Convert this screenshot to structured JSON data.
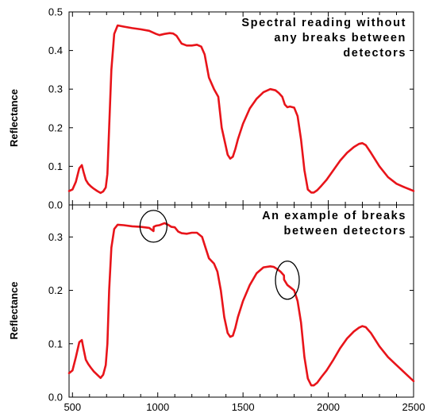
{
  "chart_data": [
    {
      "type": "line",
      "xlim": [
        480,
        2500
      ],
      "ylim": [
        0,
        0.5
      ],
      "ylabel": "Reflectance",
      "yticks": [
        "0.0",
        "0.1",
        "0.2",
        "0.3",
        "0.4",
        "0.5"
      ],
      "grid": false,
      "line_color": "#e8141a",
      "annotation": [
        "Spectral reading without",
        "any breaks between",
        "detectors"
      ],
      "series": [
        {
          "x": [
            480,
            500,
            520,
            540,
            555,
            565,
            578,
            592,
            608,
            625,
            645,
            665,
            680,
            695,
            705,
            715,
            728,
            745,
            765,
            800,
            850,
            900,
            950,
            990,
            1010,
            1040,
            1070,
            1090,
            1110,
            1140,
            1170,
            1200,
            1230,
            1255,
            1275,
            1300,
            1330,
            1355,
            1375,
            1395,
            1410,
            1425,
            1440,
            1455,
            1470,
            1500,
            1540,
            1580,
            1620,
            1660,
            1690,
            1710,
            1730,
            1745,
            1760,
            1775,
            1800,
            1820,
            1840,
            1860,
            1880,
            1900,
            1915,
            1935,
            1960,
            1990,
            2030,
            2070,
            2110,
            2150,
            2180,
            2200,
            2220,
            2250,
            2300,
            2350,
            2400,
            2450,
            2490,
            2500
          ],
          "values": [
            0.036,
            0.04,
            0.06,
            0.095,
            0.103,
            0.085,
            0.065,
            0.055,
            0.048,
            0.042,
            0.036,
            0.031,
            0.035,
            0.045,
            0.08,
            0.2,
            0.35,
            0.443,
            0.465,
            0.462,
            0.458,
            0.455,
            0.451,
            0.443,
            0.44,
            0.443,
            0.445,
            0.444,
            0.438,
            0.418,
            0.413,
            0.413,
            0.415,
            0.41,
            0.39,
            0.33,
            0.3,
            0.28,
            0.2,
            0.16,
            0.13,
            0.12,
            0.125,
            0.145,
            0.17,
            0.21,
            0.25,
            0.275,
            0.292,
            0.3,
            0.297,
            0.29,
            0.28,
            0.26,
            0.253,
            0.255,
            0.252,
            0.23,
            0.17,
            0.09,
            0.04,
            0.032,
            0.032,
            0.038,
            0.05,
            0.065,
            0.09,
            0.115,
            0.135,
            0.15,
            0.158,
            0.16,
            0.155,
            0.135,
            0.1,
            0.072,
            0.055,
            0.045,
            0.038,
            0.036
          ]
        }
      ]
    },
    {
      "type": "line",
      "xlim": [
        480,
        2500
      ],
      "ylim": [
        0,
        0.36
      ],
      "xlabel": "",
      "ylabel": "Reflectance",
      "xticks": [
        "500",
        "1000",
        "1500",
        "2000",
        "2500"
      ],
      "yticks": [
        "0.0",
        "0.1",
        "0.2",
        "0.3"
      ],
      "grid": false,
      "line_color": "#e8141a",
      "annotation": [
        "An example of breaks",
        "between detectors"
      ],
      "ellipse_centers": [
        {
          "x": 975,
          "y": 0.32
        },
        {
          "x": 1760,
          "y": 0.219
        }
      ],
      "series": [
        {
          "x": [
            480,
            500,
            520,
            540,
            555,
            565,
            578,
            592,
            608,
            625,
            645,
            665,
            680,
            695,
            705,
            715,
            728,
            745,
            765,
            800,
            850,
            900,
            950,
            975,
            976,
            990,
            1010,
            1040,
            1060,
            1080,
            1100,
            1120,
            1140,
            1170,
            1200,
            1230,
            1260,
            1280,
            1300,
            1330,
            1350,
            1370,
            1390,
            1410,
            1425,
            1440,
            1455,
            1470,
            1500,
            1540,
            1580,
            1620,
            1660,
            1680,
            1700,
            1720,
            1740,
            1741,
            1760,
            1780,
            1800,
            1820,
            1840,
            1860,
            1880,
            1900,
            1915,
            1935,
            1960,
            1990,
            2030,
            2070,
            2110,
            2150,
            2180,
            2200,
            2220,
            2250,
            2300,
            2350,
            2400,
            2450,
            2500
          ],
          "values": [
            0.045,
            0.05,
            0.075,
            0.103,
            0.107,
            0.09,
            0.07,
            0.062,
            0.055,
            0.048,
            0.042,
            0.036,
            0.042,
            0.06,
            0.1,
            0.2,
            0.28,
            0.315,
            0.323,
            0.322,
            0.32,
            0.319,
            0.317,
            0.311,
            0.319,
            0.321,
            0.322,
            0.326,
            0.323,
            0.319,
            0.318,
            0.31,
            0.307,
            0.306,
            0.308,
            0.308,
            0.3,
            0.28,
            0.26,
            0.25,
            0.235,
            0.2,
            0.15,
            0.12,
            0.113,
            0.115,
            0.13,
            0.15,
            0.18,
            0.21,
            0.232,
            0.243,
            0.245,
            0.244,
            0.24,
            0.235,
            0.228,
            0.22,
            0.21,
            0.205,
            0.2,
            0.18,
            0.14,
            0.075,
            0.035,
            0.022,
            0.022,
            0.027,
            0.038,
            0.05,
            0.07,
            0.092,
            0.11,
            0.123,
            0.13,
            0.133,
            0.131,
            0.12,
            0.095,
            0.075,
            0.06,
            0.045,
            0.03
          ]
        }
      ]
    }
  ]
}
